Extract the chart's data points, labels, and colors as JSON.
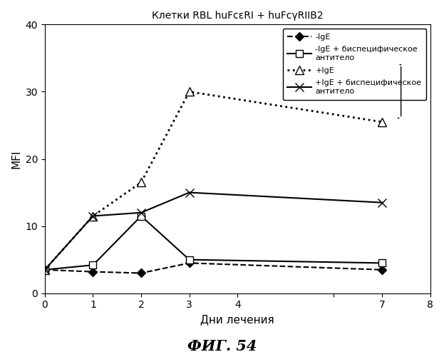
{
  "title": "Клетки RBL huFcεRI + huFcγRIIB2",
  "xlabel": "Дни лечения",
  "ylabel": "MFI",
  "caption": "ФИГ. 54",
  "xlim": [
    0,
    8
  ],
  "ylim": [
    0,
    40
  ],
  "yticks": [
    0,
    10,
    20,
    30,
    40
  ],
  "series": [
    {
      "label": "-IgE",
      "x": [
        0,
        1,
        2,
        3,
        7
      ],
      "y": [
        3.5,
        3.2,
        3.0,
        4.5,
        3.5
      ],
      "color": "black",
      "linestyle": "--",
      "marker": "D",
      "markersize": 6,
      "markerfacecolor": "black",
      "linewidth": 1.5
    },
    {
      "label": "-IgE + биспецифическое\nантитело",
      "x": [
        0,
        1,
        2,
        3,
        7
      ],
      "y": [
        3.5,
        4.2,
        11.5,
        5.0,
        4.5
      ],
      "color": "black",
      "linestyle": "-",
      "marker": "s",
      "markersize": 7,
      "markerfacecolor": "white",
      "linewidth": 1.5
    },
    {
      "label": "+IgE",
      "x": [
        0,
        1,
        2,
        3,
        7
      ],
      "y": [
        3.5,
        11.5,
        16.5,
        30.0,
        25.5
      ],
      "color": "black",
      "linestyle": ":",
      "marker": "^",
      "markersize": 8,
      "markerfacecolor": "white",
      "linewidth": 2.0
    },
    {
      "label": "+IgE + биспецифическое\nантитело",
      "x": [
        0,
        1,
        2,
        3,
        7
      ],
      "y": [
        3.5,
        11.5,
        12.0,
        15.0,
        13.5
      ],
      "color": "black",
      "linestyle": "-",
      "marker": "x",
      "markersize": 9,
      "markerfacecolor": "black",
      "linewidth": 1.5
    }
  ],
  "legend_fontsize": 8,
  "title_fontsize": 10,
  "axis_fontsize": 11,
  "caption_fontsize": 15,
  "background_color": "#ffffff"
}
